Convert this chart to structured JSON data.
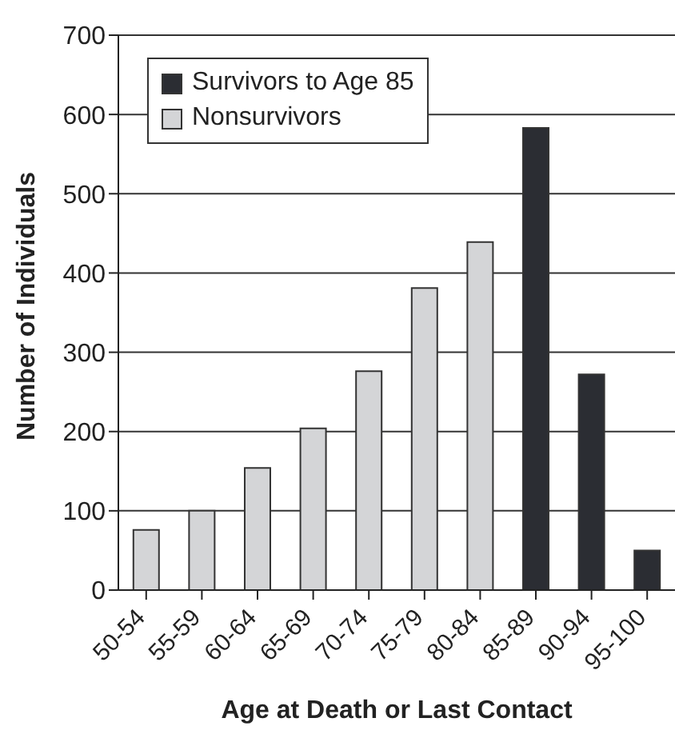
{
  "chart_data": {
    "type": "bar",
    "xlabel": "Age at Death or Last Contact",
    "ylabel": "Number of Individuals",
    "categories": [
      "50-54",
      "55-59",
      "60-64",
      "65-69",
      "70-74",
      "75-79",
      "80-84",
      "85-89",
      "90-94",
      "95-100"
    ],
    "series": [
      {
        "name": "Survivors to Age 85",
        "color": "#2b2d33",
        "values": [
          null,
          null,
          null,
          null,
          null,
          null,
          null,
          583,
          272,
          50
        ]
      },
      {
        "name": "Nonsurvivors",
        "color": "#d4d5d7",
        "values": [
          76,
          100,
          154,
          204,
          276,
          381,
          439,
          null,
          null,
          null
        ]
      }
    ],
    "stacked": true,
    "ylim": [
      0,
      700
    ],
    "yticks": [
      0,
      100,
      200,
      300,
      400,
      500,
      600,
      700
    ],
    "grid": "y",
    "legend": "top left"
  }
}
